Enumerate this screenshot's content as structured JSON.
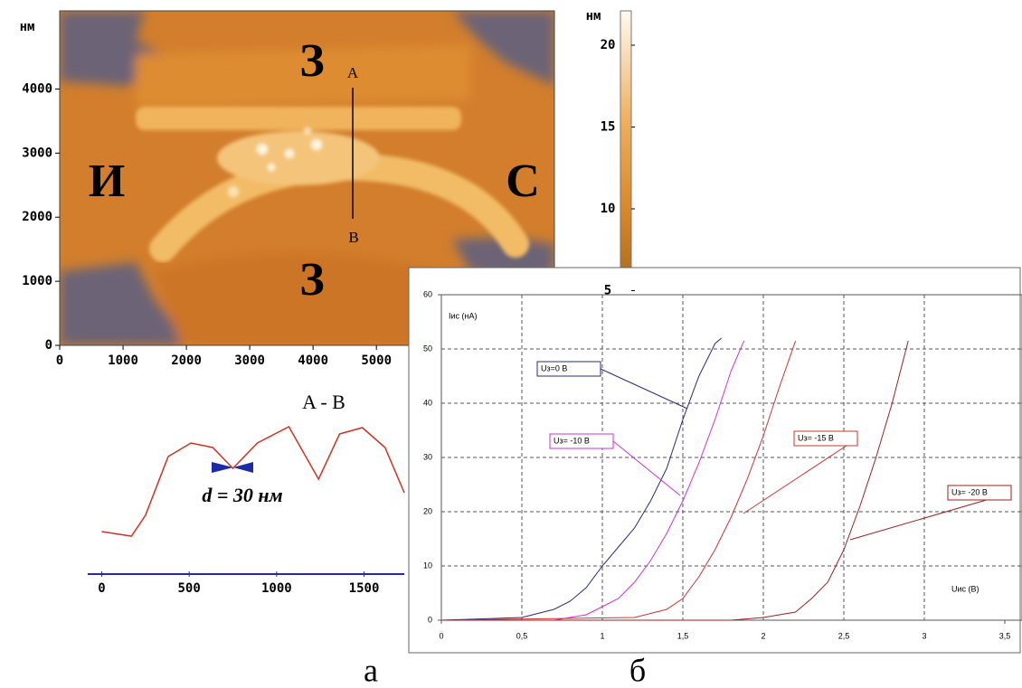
{
  "chart_data": [
    {
      "type": "image",
      "y_unit": "нм",
      "xlim": [
        0,
        7810
      ],
      "ylim": [
        0,
        5220
      ],
      "xticks": [
        0,
        1000,
        2000,
        3000,
        4000,
        5000
      ],
      "yticks": [
        0,
        1000,
        2000,
        3000,
        4000
      ],
      "annotations": [
        "З",
        "З",
        "И",
        "С",
        "A",
        "B"
      ]
    },
    {
      "type": "colorbar",
      "unit": "нм",
      "ylim": [
        0,
        22.1
      ],
      "yticks": [
        5,
        10,
        15,
        20
      ]
    },
    {
      "type": "line",
      "title": "A - B",
      "annotation": "d = 30 нм",
      "color": "#cc3322",
      "xlim": [
        -80,
        1730
      ],
      "ylim": [
        0,
        40
      ],
      "xticks": [
        0,
        500,
        1000,
        1500
      ],
      "series": [
        {
          "x": [
            0,
            170,
            250,
            380,
            510,
            635,
            750,
            890,
            1070,
            1240,
            1360,
            1490,
            1620,
            1730
          ],
          "values": [
            9.4,
            8.4,
            13,
            26,
            29,
            28,
            23.4,
            29,
            32.6,
            21,
            31,
            32.4,
            28,
            18
          ],
          "color": "#cc3322"
        }
      ]
    },
    {
      "type": "line",
      "ylabel": "Iис (нА)",
      "xlabel": "Uис (В)",
      "grid": true,
      "xlim": [
        0,
        3.5
      ],
      "ylim": [
        0,
        60
      ],
      "xticks": [
        0,
        {
          "value": 0.5,
          "label": "0,5"
        },
        1,
        {
          "value": 1.5,
          "label": "1,5"
        },
        2,
        {
          "value": 2.5,
          "label": "2,5"
        },
        3,
        {
          "value": 3.5,
          "label": "3,5"
        }
      ],
      "yticks": [
        0,
        10,
        20,
        30,
        40,
        50,
        60
      ],
      "series": [
        {
          "name": "Uз=0 В",
          "color": "#2b2b7a",
          "x": [
            0,
            0.5,
            0.7,
            0.8,
            0.9,
            1.0,
            1.1,
            1.2,
            1.3,
            1.4,
            1.5,
            1.6,
            1.7,
            1.74
          ],
          "values": [
            0,
            0.5,
            2,
            3.5,
            6,
            10,
            13.5,
            17,
            22,
            28,
            37,
            45,
            51,
            52
          ]
        },
        {
          "name": "Uз= -10 В",
          "color": "#cc33cc",
          "x": [
            0,
            0.7,
            0.9,
            1.0,
            1.1,
            1.2,
            1.3,
            1.4,
            1.5,
            1.6,
            1.7,
            1.8,
            1.88
          ],
          "values": [
            0,
            0,
            1,
            2.5,
            4,
            7,
            11,
            16,
            22,
            29,
            37,
            46,
            51.5
          ]
        },
        {
          "name": "Uз= -15 В",
          "color": "#cc3333",
          "x": [
            0,
            1.2,
            1.4,
            1.5,
            1.6,
            1.7,
            1.8,
            1.9,
            2.0,
            2.1,
            2.2
          ],
          "values": [
            0,
            0.5,
            2,
            4,
            8,
            13,
            19,
            26,
            34,
            43,
            51.5
          ]
        },
        {
          "name": "Uз= -20 В",
          "color": "#992222",
          "x": [
            0,
            1.8,
            2.0,
            2.2,
            2.3,
            2.4,
            2.5,
            2.6,
            2.7,
            2.8,
            2.9
          ],
          "values": [
            0,
            0,
            0.5,
            1.5,
            4,
            7,
            13,
            21,
            30,
            40,
            51.5
          ]
        }
      ]
    }
  ],
  "figure_labels": [
    "а",
    "б"
  ]
}
